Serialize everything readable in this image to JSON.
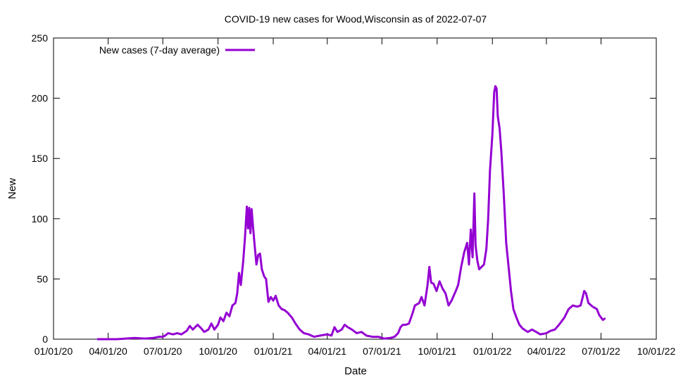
{
  "chart_data": {
    "type": "line",
    "title": "COVID-19 new cases for Wood,Wisconsin as of 2022-07-07",
    "xlabel": "Date",
    "ylabel": "New",
    "xlim": [
      "2020-01-01",
      "2022-10-01"
    ],
    "ylim": [
      0,
      250
    ],
    "y_ticks": [
      0,
      50,
      100,
      150,
      200,
      250
    ],
    "x_ticks": [
      {
        "date": "2020-01-01",
        "label": "01/01/20"
      },
      {
        "date": "2020-04-01",
        "label": "04/01/20"
      },
      {
        "date": "2020-07-01",
        "label": "07/01/20"
      },
      {
        "date": "2020-10-01",
        "label": "10/01/20"
      },
      {
        "date": "2021-01-01",
        "label": "01/01/21"
      },
      {
        "date": "2021-04-01",
        "label": "04/01/21"
      },
      {
        "date": "2021-07-01",
        "label": "07/01/21"
      },
      {
        "date": "2021-10-01",
        "label": "10/01/21"
      },
      {
        "date": "2022-01-01",
        "label": "01/01/22"
      },
      {
        "date": "2022-04-01",
        "label": "04/01/22"
      },
      {
        "date": "2022-07-01",
        "label": "07/01/22"
      },
      {
        "date": "2022-10-01",
        "label": "10/01/22"
      }
    ],
    "grid": false,
    "legend_position": "top-left",
    "series": [
      {
        "name": "New cases (7-day average)",
        "color": "#9400d3",
        "points": [
          [
            "2020-03-15",
            0
          ],
          [
            "2020-04-01",
            0
          ],
          [
            "2020-04-15",
            0
          ],
          [
            "2020-05-01",
            0.5
          ],
          [
            "2020-05-15",
            1
          ],
          [
            "2020-06-01",
            0.5
          ],
          [
            "2020-06-15",
            1
          ],
          [
            "2020-06-25",
            2
          ],
          [
            "2020-07-01",
            2
          ],
          [
            "2020-07-05",
            3
          ],
          [
            "2020-07-10",
            5
          ],
          [
            "2020-07-18",
            4
          ],
          [
            "2020-07-25",
            5
          ],
          [
            "2020-08-01",
            4
          ],
          [
            "2020-08-10",
            7
          ],
          [
            "2020-08-15",
            11
          ],
          [
            "2020-08-20",
            8
          ],
          [
            "2020-08-28",
            12
          ],
          [
            "2020-09-03",
            9
          ],
          [
            "2020-09-08",
            6
          ],
          [
            "2020-09-15",
            8
          ],
          [
            "2020-09-20",
            13
          ],
          [
            "2020-09-25",
            8
          ],
          [
            "2020-10-01",
            12
          ],
          [
            "2020-10-05",
            18
          ],
          [
            "2020-10-10",
            15
          ],
          [
            "2020-10-15",
            22
          ],
          [
            "2020-10-20",
            19
          ],
          [
            "2020-10-25",
            28
          ],
          [
            "2020-10-30",
            30
          ],
          [
            "2020-11-02",
            38
          ],
          [
            "2020-11-05",
            55
          ],
          [
            "2020-11-08",
            45
          ],
          [
            "2020-11-12",
            65
          ],
          [
            "2020-11-15",
            85
          ],
          [
            "2020-11-18",
            110
          ],
          [
            "2020-11-20",
            92
          ],
          [
            "2020-11-22",
            109
          ],
          [
            "2020-11-24",
            88
          ],
          [
            "2020-11-26",
            108
          ],
          [
            "2020-11-28",
            95
          ],
          [
            "2020-12-01",
            78
          ],
          [
            "2020-12-04",
            62
          ],
          [
            "2020-12-07",
            70
          ],
          [
            "2020-12-10",
            71
          ],
          [
            "2020-12-13",
            58
          ],
          [
            "2020-12-17",
            52
          ],
          [
            "2020-12-20",
            50
          ],
          [
            "2020-12-24",
            31
          ],
          [
            "2020-12-28",
            35
          ],
          [
            "2021-01-01",
            32
          ],
          [
            "2021-01-05",
            36
          ],
          [
            "2021-01-10",
            28
          ],
          [
            "2021-01-15",
            25
          ],
          [
            "2021-01-20",
            24
          ],
          [
            "2021-01-25",
            22
          ],
          [
            "2021-02-01",
            18
          ],
          [
            "2021-02-07",
            13
          ],
          [
            "2021-02-14",
            8
          ],
          [
            "2021-02-21",
            5
          ],
          [
            "2021-03-01",
            4
          ],
          [
            "2021-03-10",
            2
          ],
          [
            "2021-03-20",
            3
          ],
          [
            "2021-04-01",
            4
          ],
          [
            "2021-04-08",
            3
          ],
          [
            "2021-04-13",
            10
          ],
          [
            "2021-04-18",
            6
          ],
          [
            "2021-04-25",
            8
          ],
          [
            "2021-04-30",
            12
          ],
          [
            "2021-05-05",
            10
          ],
          [
            "2021-05-12",
            8
          ],
          [
            "2021-05-20",
            5
          ],
          [
            "2021-05-28",
            6
          ],
          [
            "2021-06-05",
            3
          ],
          [
            "2021-06-15",
            2
          ],
          [
            "2021-06-25",
            2
          ],
          [
            "2021-07-05",
            0.5
          ],
          [
            "2021-07-15",
            1
          ],
          [
            "2021-07-22",
            2
          ],
          [
            "2021-07-28",
            5
          ],
          [
            "2021-08-01",
            10
          ],
          [
            "2021-08-05",
            12
          ],
          [
            "2021-08-10",
            12
          ],
          [
            "2021-08-15",
            13
          ],
          [
            "2021-08-20",
            20
          ],
          [
            "2021-08-25",
            28
          ],
          [
            "2021-09-01",
            30
          ],
          [
            "2021-09-05",
            35
          ],
          [
            "2021-09-10",
            28
          ],
          [
            "2021-09-15",
            45
          ],
          [
            "2021-09-18",
            60
          ],
          [
            "2021-09-21",
            47
          ],
          [
            "2021-09-25",
            46
          ],
          [
            "2021-09-30",
            40
          ],
          [
            "2021-10-05",
            48
          ],
          [
            "2021-10-10",
            42
          ],
          [
            "2021-10-15",
            38
          ],
          [
            "2021-10-20",
            28
          ],
          [
            "2021-10-25",
            32
          ],
          [
            "2021-11-01",
            40
          ],
          [
            "2021-11-05",
            45
          ],
          [
            "2021-11-10",
            60
          ],
          [
            "2021-11-15",
            72
          ],
          [
            "2021-11-20",
            80
          ],
          [
            "2021-11-23",
            62
          ],
          [
            "2021-11-26",
            91
          ],
          [
            "2021-11-29",
            68
          ],
          [
            "2021-12-02",
            121
          ],
          [
            "2021-12-04",
            78
          ],
          [
            "2021-12-07",
            65
          ],
          [
            "2021-12-10",
            58
          ],
          [
            "2021-12-14",
            60
          ],
          [
            "2021-12-18",
            62
          ],
          [
            "2021-12-22",
            75
          ],
          [
            "2021-12-25",
            100
          ],
          [
            "2021-12-28",
            140
          ],
          [
            "2022-01-01",
            170
          ],
          [
            "2022-01-04",
            205
          ],
          [
            "2022-01-06",
            210
          ],
          [
            "2022-01-08",
            208
          ],
          [
            "2022-01-10",
            185
          ],
          [
            "2022-01-13",
            175
          ],
          [
            "2022-01-16",
            155
          ],
          [
            "2022-01-20",
            120
          ],
          [
            "2022-01-24",
            80
          ],
          [
            "2022-01-28",
            60
          ],
          [
            "2022-02-01",
            40
          ],
          [
            "2022-02-05",
            25
          ],
          [
            "2022-02-10",
            18
          ],
          [
            "2022-02-15",
            12
          ],
          [
            "2022-02-20",
            9
          ],
          [
            "2022-03-01",
            6
          ],
          [
            "2022-03-08",
            8
          ],
          [
            "2022-03-15",
            6
          ],
          [
            "2022-03-22",
            4
          ],
          [
            "2022-04-01",
            5
          ],
          [
            "2022-04-08",
            7
          ],
          [
            "2022-04-15",
            8
          ],
          [
            "2022-04-22",
            12
          ],
          [
            "2022-05-01",
            18
          ],
          [
            "2022-05-08",
            25
          ],
          [
            "2022-05-15",
            28
          ],
          [
            "2022-05-22",
            27
          ],
          [
            "2022-05-28",
            28
          ],
          [
            "2022-06-03",
            40
          ],
          [
            "2022-06-06",
            38
          ],
          [
            "2022-06-10",
            30
          ],
          [
            "2022-06-17",
            27
          ],
          [
            "2022-06-24",
            25
          ],
          [
            "2022-06-28",
            20
          ],
          [
            "2022-07-01",
            18
          ],
          [
            "2022-07-04",
            16
          ],
          [
            "2022-07-07",
            17
          ]
        ]
      }
    ]
  }
}
